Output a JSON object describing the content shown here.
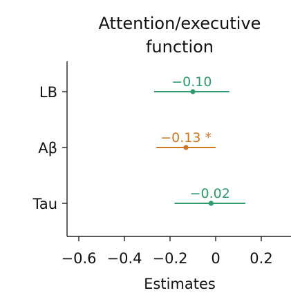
{
  "chart_data": {
    "type": "forest",
    "title_lines": [
      "Attention/executive",
      "function"
    ],
    "xlabel": "Estimates",
    "ylabel": "",
    "xlim": [
      -0.66,
      0.33
    ],
    "x_ticks": [
      -0.6,
      -0.4,
      -0.2,
      0,
      0.2
    ],
    "x_tick_labels": [
      "−0.6",
      "−0.4",
      "−0.2",
      "0",
      "0.2"
    ],
    "categories": [
      "LB",
      "Aβ",
      "Tau"
    ],
    "estimates": [
      -0.1,
      -0.13,
      -0.02
    ],
    "ci_lower": [
      -0.27,
      -0.26,
      -0.18
    ],
    "ci_upper": [
      0.06,
      0.0,
      0.13
    ],
    "labels": [
      "−0.10",
      "−0.13 *",
      "−0.02"
    ],
    "colors": [
      "#2e9a6e",
      "#d0761f",
      "#2e9a6e"
    ],
    "grid": false,
    "legend": "none"
  }
}
